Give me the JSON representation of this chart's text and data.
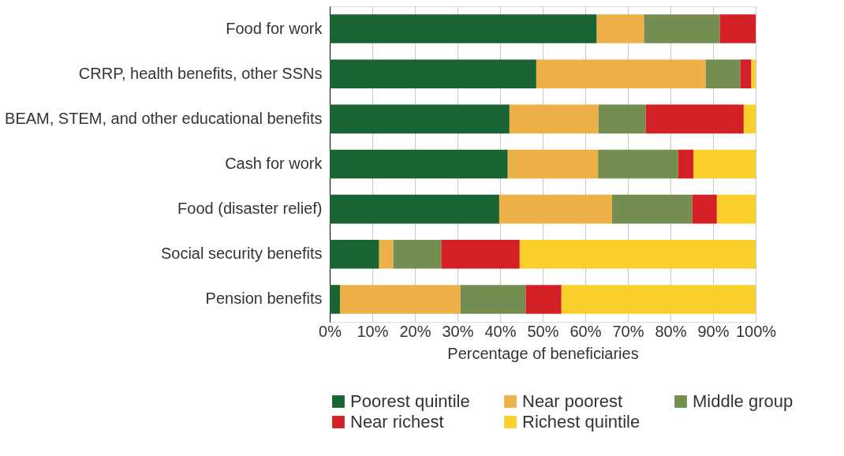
{
  "chart_data": {
    "type": "bar",
    "orientation": "horizontal",
    "stacked": true,
    "xlabel": "Percentage of beneficiaries",
    "categories": [
      "Food for work",
      "CRRP, health benefits, other SSNs",
      "BEAM, STEM, and other educational benefits",
      "Cash for work",
      "Food (disaster relief)",
      "Social security benefits",
      "Pension benefits"
    ],
    "series": [
      {
        "name": "Poorest quintile",
        "color": "#1a6332",
        "values": [
          62.7,
          48.5,
          42.2,
          41.8,
          39.8,
          11.6,
          2.4
        ]
      },
      {
        "name": "Near poorest",
        "color": "#eeb048",
        "values": [
          11.1,
          39.8,
          20.9,
          21.2,
          26.5,
          3.3,
          28.3
        ]
      },
      {
        "name": "Middle group",
        "color": "#748e51",
        "values": [
          17.8,
          8.1,
          11.1,
          18.8,
          18.8,
          11.3,
          15.3
        ]
      },
      {
        "name": "Near richest",
        "color": "#d32026",
        "values": [
          8.4,
          2.6,
          23.0,
          3.6,
          5.8,
          18.4,
          8.4
        ]
      },
      {
        "name": "Richest quintile",
        "color": "#fbd02d",
        "values": [
          0,
          1.0,
          2.8,
          14.6,
          9.1,
          55.4,
          45.6
        ]
      }
    ],
    "xlim": [
      0,
      100
    ],
    "xticks": [
      {
        "value": 0,
        "label": "0%"
      },
      {
        "value": 10,
        "label": "10%"
      },
      {
        "value": 20,
        "label": "20%"
      },
      {
        "value": 30,
        "label": "30%"
      },
      {
        "value": 40,
        "label": "40%"
      },
      {
        "value": 50,
        "label": "50%"
      },
      {
        "value": 60,
        "label": "60%"
      },
      {
        "value": 70,
        "label": "70%"
      },
      {
        "value": 80,
        "label": "80%"
      },
      {
        "value": 90,
        "label": "90%"
      },
      {
        "value": 100,
        "label": "100%"
      }
    ],
    "grid": "x",
    "legend": "bottom"
  }
}
